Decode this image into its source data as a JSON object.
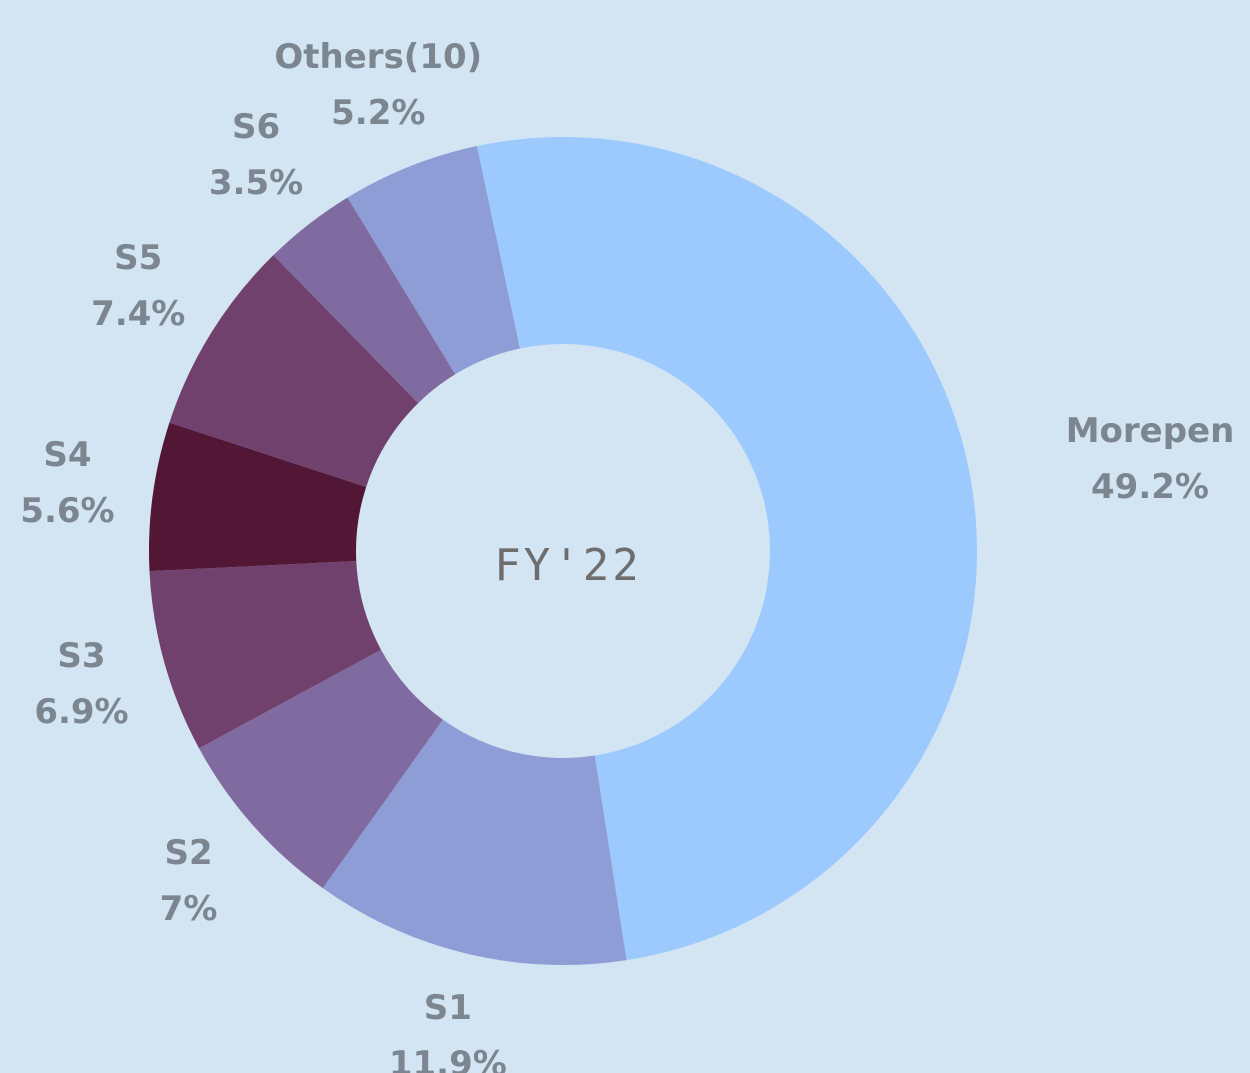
{
  "chart_data": {
    "type": "donut",
    "center_label": "FY'22",
    "categories": [
      "Morepen",
      "S1",
      "S2",
      "S3",
      "S4",
      "S5",
      "S6",
      "Others(10)"
    ],
    "values": [
      49.2,
      11.9,
      7,
      6.9,
      5.6,
      7.4,
      3.5,
      5.2
    ],
    "value_labels": [
      "49.2%",
      "11.9%",
      "7%",
      "6.9%",
      "5.6%",
      "7.4%",
      "3.5%",
      "5.2%"
    ],
    "colors": [
      "#9ccaff",
      "#8f9dd7",
      "#806ba0",
      "#6f416c",
      "#531736",
      "#6f416c",
      "#806ba0",
      "#8f9dd7"
    ]
  }
}
